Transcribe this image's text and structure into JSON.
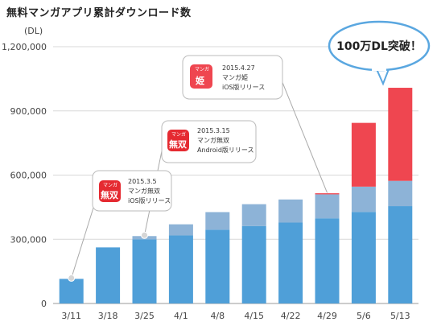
{
  "title": "無料マンガアプリ累計ダウンロード数",
  "chart_data": {
    "type": "bar",
    "stacked": true,
    "unit_label": "(DL)",
    "ylim": [
      0,
      1200000
    ],
    "yticks": [
      "0",
      "300,000",
      "600,000",
      "900,000",
      "1,200,000"
    ],
    "ytick_values": [
      0,
      300000,
      600000,
      900000,
      1200000
    ],
    "categories": [
      "3/11",
      "3/18",
      "3/25",
      "4/1",
      "4/8",
      "4/15",
      "4/22",
      "4/29",
      "5/6",
      "5/13"
    ],
    "series": [
      {
        "values": [
          115000,
          262000,
          300000,
          318000,
          345000,
          362000,
          378000,
          398000,
          428000,
          455000
        ]
      },
      {
        "values": [
          0,
          0,
          15000,
          52000,
          82000,
          102000,
          108000,
          112000,
          118000,
          118000
        ]
      },
      {
        "values": [
          0,
          0,
          0,
          0,
          0,
          0,
          0,
          5000,
          298000,
          435000
        ]
      }
    ],
    "colors": [
      "#4f9fd8",
      "#8db3d7",
      "#ef4650"
    ],
    "gridlines": true
  },
  "callouts": [
    {
      "date": "2015.3.5",
      "name": "マンガ無双",
      "note": "iOS版リリース",
      "icon_label": "無双",
      "icon_sub": "マンガ",
      "icon_color": "#e52a31"
    },
    {
      "date": "2015.3.15",
      "name": "マンガ無双",
      "note": "Android版リリース",
      "icon_label": "無双",
      "icon_sub": "マンガ",
      "icon_color": "#e52a31"
    },
    {
      "date": "2015.4.27",
      "name": "マンガ姫",
      "note": "iOS版リリース",
      "icon_label": "姫",
      "icon_sub": "マンガ",
      "icon_color": "#ef4650"
    }
  ],
  "highlight_bubble": "100万DL突破！",
  "icons": {
    "callout_pointer": "leader-line-dot",
    "app_icon": "app-icon"
  }
}
